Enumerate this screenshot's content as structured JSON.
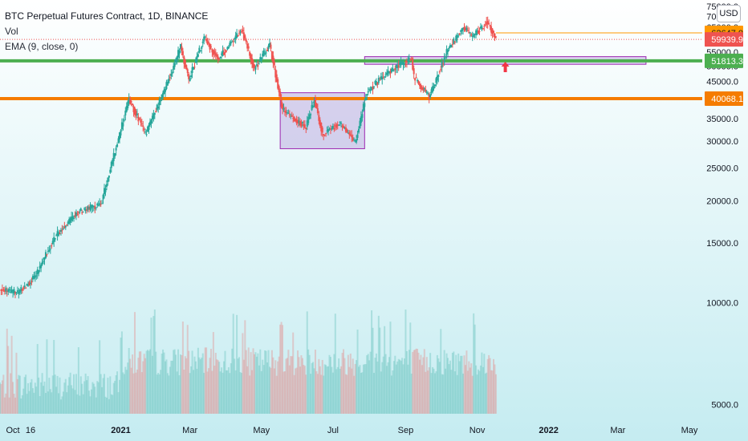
{
  "legend": {
    "title": "BTC Perpetual Futures Contract, 1D, BINANCE",
    "vol": "Vol",
    "ema": "EMA (9, close, 0)"
  },
  "currency_button": "USD",
  "colors": {
    "up": "#26a69a",
    "down": "#ef5350",
    "support_green": "#4caf50",
    "support_orange": "#f57c00",
    "zone_fill": "#b39ddb",
    "zone_border": "#9c27b0",
    "prev_close_line": "#ff9800",
    "arrow": "#f23645"
  },
  "chart_data": {
    "type": "candlestick",
    "symbol": "BTC Perpetual Futures Contract",
    "interval": "1D",
    "exchange": "BINANCE",
    "y_axis": {
      "scale": "log",
      "range": [
        4700,
        75000
      ],
      "ticks": [
        "5000.0",
        "10000.0",
        "15000.0",
        "20000.0",
        "25000.0",
        "30000.0",
        "35000.0",
        "40000.0",
        "45000.0",
        "50000.0",
        "55000.0",
        "60000.0",
        "65000.0",
        "70000.0",
        "75000.0"
      ]
    },
    "x_axis": {
      "range": [
        "2020-09-20",
        "2022-06-20"
      ],
      "ticks": [
        {
          "date": "2020-10-01",
          "label": "Oct"
        },
        {
          "date": "2020-10-16",
          "label": "16"
        },
        {
          "date": "2021-01-01",
          "label": "2021"
        },
        {
          "date": "2021-03-01",
          "label": "Mar"
        },
        {
          "date": "2021-05-01",
          "label": "May"
        },
        {
          "date": "2021-07-01",
          "label": "Jul"
        },
        {
          "date": "2021-09-01",
          "label": "Sep"
        },
        {
          "date": "2021-11-01",
          "label": "Nov"
        },
        {
          "date": "2022-01-01",
          "label": "2022"
        },
        {
          "date": "2022-03-01",
          "label": "Mar"
        },
        {
          "date": "2022-05-01",
          "label": "May"
        }
      ]
    },
    "close_path": [
      {
        "date": "2020-09-20",
        "close": 10900
      },
      {
        "date": "2020-10-05",
        "close": 10700
      },
      {
        "date": "2020-10-20",
        "close": 11900
      },
      {
        "date": "2020-11-05",
        "close": 15500
      },
      {
        "date": "2020-11-25",
        "close": 18500
      },
      {
        "date": "2020-12-15",
        "close": 19500
      },
      {
        "date": "2021-01-08",
        "close": 40000
      },
      {
        "date": "2021-01-22",
        "close": 31500
      },
      {
        "date": "2021-02-08",
        "close": 43000
      },
      {
        "date": "2021-02-21",
        "close": 57000
      },
      {
        "date": "2021-02-28",
        "close": 45500
      },
      {
        "date": "2021-03-13",
        "close": 60500
      },
      {
        "date": "2021-03-25",
        "close": 52500
      },
      {
        "date": "2021-04-14",
        "close": 64000
      },
      {
        "date": "2021-04-25",
        "close": 49000
      },
      {
        "date": "2021-05-08",
        "close": 58000
      },
      {
        "date": "2021-05-19",
        "close": 37000
      },
      {
        "date": "2021-06-08",
        "close": 33000
      },
      {
        "date": "2021-06-15",
        "close": 40000
      },
      {
        "date": "2021-06-22",
        "close": 31500
      },
      {
        "date": "2021-07-07",
        "close": 34000
      },
      {
        "date": "2021-07-20",
        "close": 29800
      },
      {
        "date": "2021-07-30",
        "close": 42000
      },
      {
        "date": "2021-08-13",
        "close": 46500
      },
      {
        "date": "2021-08-23",
        "close": 49500
      },
      {
        "date": "2021-09-06",
        "close": 52500
      },
      {
        "date": "2021-09-08",
        "close": 46500
      },
      {
        "date": "2021-09-21",
        "close": 40500
      },
      {
        "date": "2021-10-06",
        "close": 55000
      },
      {
        "date": "2021-10-20",
        "close": 65000
      },
      {
        "date": "2021-10-28",
        "close": 61000
      },
      {
        "date": "2021-11-09",
        "close": 67500
      },
      {
        "date": "2021-11-15",
        "close": 62647
      },
      {
        "date": "2021-11-17",
        "close": 59939.9
      }
    ],
    "series": [
      {
        "name": "Vol",
        "type": "volume",
        "note": "histogram along bottom, peak near 22000 scale units around 2021-05-19"
      }
    ],
    "annotations": [
      {
        "type": "hline",
        "label": "51813.3",
        "value": 51813.3,
        "color": "#4caf50"
      },
      {
        "type": "hline",
        "label": "40068.1",
        "value": 40068.1,
        "color": "#f57c00"
      },
      {
        "type": "price_line",
        "label": "62647.0",
        "value": 62647.0,
        "color": "#ff9800"
      },
      {
        "type": "last_price",
        "label": "59939.9",
        "value": 59939.9,
        "color": "#ef5350"
      },
      {
        "type": "rectangle",
        "from": "2021-05-17",
        "to": "2021-07-28",
        "top": 41700,
        "bottom": 28500
      },
      {
        "type": "rectangle",
        "from": "2021-07-28",
        "to": "2022-03-25",
        "top": 53300,
        "bottom": 50600
      },
      {
        "type": "arrow_up",
        "date": "2021-11-25",
        "value": 48500
      }
    ],
    "grid": false,
    "legend_position": "top-left"
  }
}
